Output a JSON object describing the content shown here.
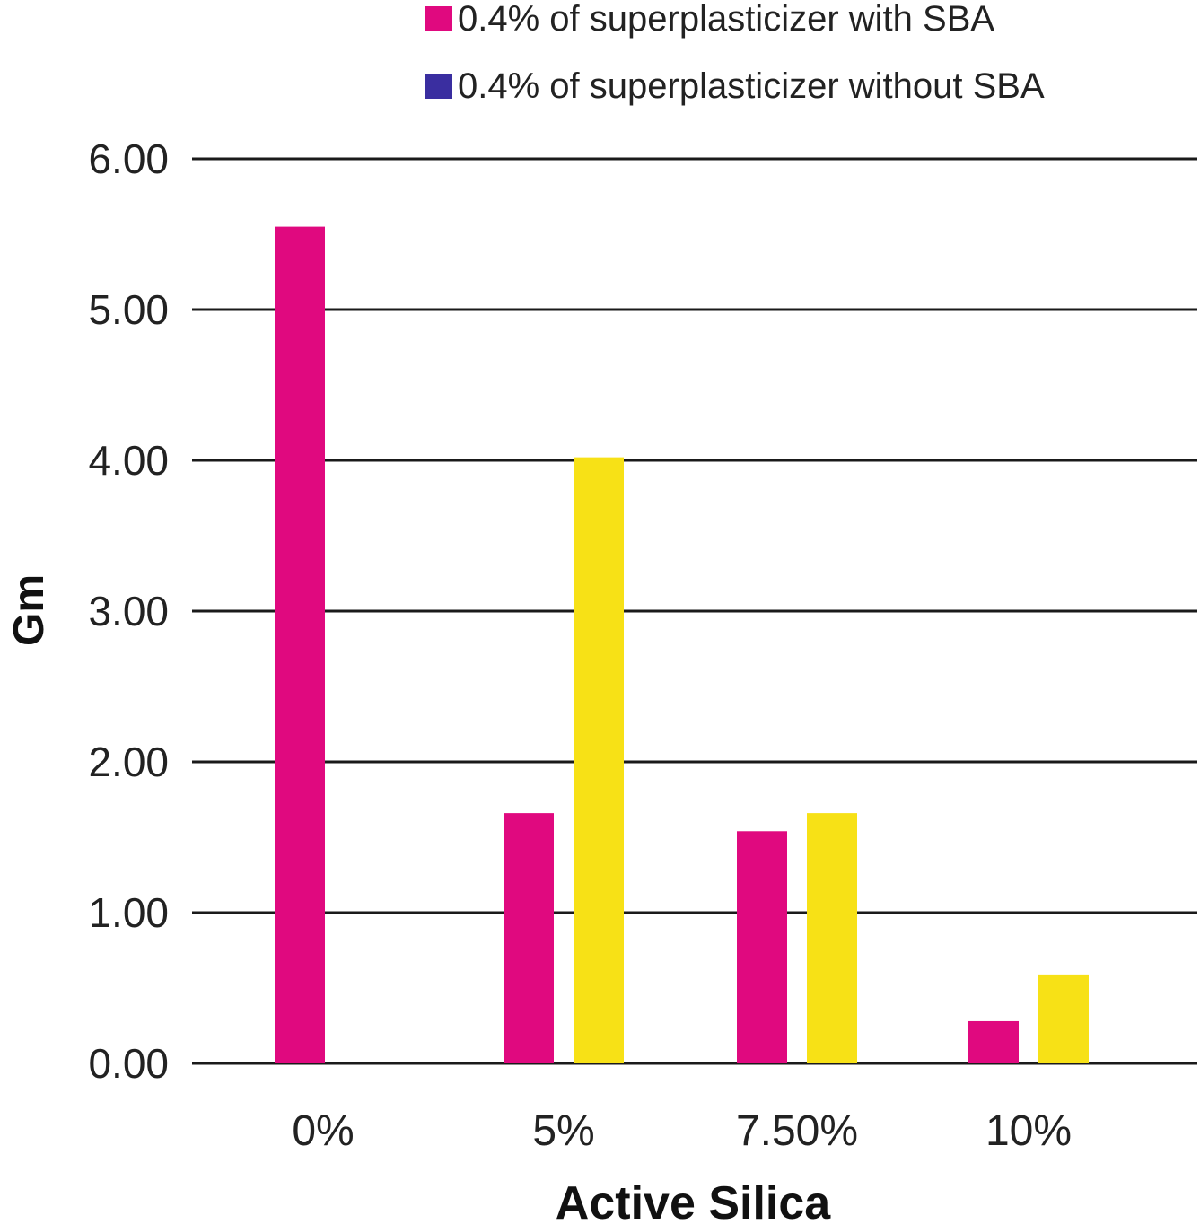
{
  "chart_data": {
    "type": "bar",
    "categories": [
      "0%",
      "5%",
      "7.50%",
      "10%"
    ],
    "series": [
      {
        "name": "0.4% of superplasticizer with SBA",
        "values": [
          5.55,
          1.66,
          1.54,
          0.28
        ],
        "color": "#e0097f",
        "legend_color": "#e0097f"
      },
      {
        "name": "0.4% of superplasticizer without SBA",
        "values": [
          null,
          4.02,
          1.66,
          0.59
        ],
        "color": "#f7e116",
        "legend_color": "#3a2ea0"
      }
    ],
    "xlabel": "Active Silica",
    "ylabel": "Gm",
    "ylim": [
      0,
      6
    ],
    "yticks": [
      "0.00",
      "1.00",
      "2.00",
      "3.00",
      "4.00",
      "5.00",
      "6.00"
    ],
    "grid": true,
    "legend_position": "top-right"
  }
}
